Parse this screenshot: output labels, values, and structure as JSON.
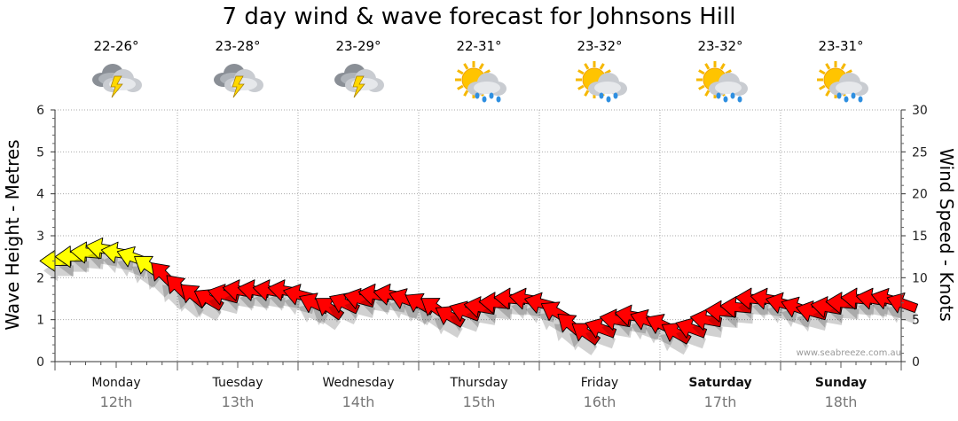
{
  "chart_data": {
    "type": "scatter",
    "title": "7 day wind & wave forecast for Johnsons Hill",
    "ylabel_left": "Wave Height - Metres",
    "ylabel_right": "Wind Speed - Knots",
    "ylim_left": [
      0,
      6
    ],
    "ylim_right": [
      0,
      30
    ],
    "yticks_left": [
      "0",
      "1",
      "2",
      "3",
      "4",
      "5",
      "6"
    ],
    "yticks_right": [
      "0",
      "5",
      "10",
      "15",
      "20",
      "25",
      "30"
    ],
    "grid": true,
    "days": [
      {
        "name": "Monday",
        "date": "12th",
        "temp": "22-26°",
        "icon": "thunderstorm-icon",
        "bold": false
      },
      {
        "name": "Tuesday",
        "date": "13th",
        "temp": "23-28°",
        "icon": "thunderstorm-icon",
        "bold": false
      },
      {
        "name": "Wednesday",
        "date": "14th",
        "temp": "23-29°",
        "icon": "thunderstorm-icon",
        "bold": false
      },
      {
        "name": "Thursday",
        "date": "15th",
        "temp": "22-31°",
        "icon": "sun-cloud-rain-icon",
        "bold": false
      },
      {
        "name": "Friday",
        "date": "16th",
        "temp": "23-32°",
        "icon": "sun-cloud-drizzle-icon",
        "bold": false
      },
      {
        "name": "Saturday",
        "date": "17th",
        "temp": "23-32°",
        "icon": "sun-cloud-rain-icon",
        "bold": true
      },
      {
        "name": "Sunday",
        "date": "18th",
        "temp": "23-31°",
        "icon": "sun-cloud-rain-icon",
        "bold": true
      }
    ],
    "series": [
      {
        "mark": "wind-arrow",
        "day_offset": [
          0,
          0.125,
          0.25,
          0.375,
          0.5,
          0.625,
          0.75,
          0.875,
          1,
          1.125,
          1.25,
          1.375,
          1.5,
          1.625,
          1.75,
          1.875,
          2,
          2.125,
          2.25,
          2.375,
          2.5,
          2.625,
          2.75,
          2.875,
          3,
          3.125,
          3.25,
          3.375,
          3.5,
          3.625,
          3.75,
          3.875,
          4,
          4.125,
          4.25,
          4.375,
          4.5,
          4.625,
          4.75,
          4.875,
          5,
          5.125,
          5.25,
          5.375,
          5.5,
          5.625,
          5.75,
          5.875,
          6,
          6.125,
          6.25,
          6.375,
          6.5,
          6.625,
          6.75,
          6.875,
          7
        ],
        "wind_knots": [
          12,
          12.5,
          13,
          13.5,
          13,
          12.5,
          11.5,
          10.5,
          9,
          8,
          7.5,
          8,
          8.5,
          8.5,
          8.5,
          8.5,
          8,
          7,
          6.5,
          7,
          7.5,
          8,
          8,
          7.5,
          7,
          6.5,
          5.5,
          6,
          6.5,
          7,
          7.5,
          7.5,
          7,
          6,
          4.5,
          3.5,
          4,
          5,
          5.5,
          5,
          4.5,
          3.5,
          4,
          5,
          6,
          6.5,
          7.5,
          7.5,
          7,
          6.5,
          6,
          6.5,
          7,
          7.5,
          7.5,
          7.5,
          7
        ],
        "wind_color": [
          "#ffff00",
          "#ffff00",
          "#ffff00",
          "#ffff00",
          "#ffff00",
          "#ffff00",
          "#ffff00",
          "#ff0000",
          "#ff0000",
          "#ff0000",
          "#ff0000",
          "#ff0000",
          "#ff0000",
          "#ff0000",
          "#ff0000",
          "#ff0000",
          "#ff0000",
          "#ff0000",
          "#ff0000",
          "#ff0000",
          "#ff0000",
          "#ff0000",
          "#ff0000",
          "#ff0000",
          "#ff0000",
          "#ff0000",
          "#ff0000",
          "#ff0000",
          "#ff0000",
          "#ff0000",
          "#ff0000",
          "#ff0000",
          "#ff0000",
          "#ff0000",
          "#ff0000",
          "#ff0000",
          "#ff0000",
          "#ff0000",
          "#ff0000",
          "#ff0000",
          "#ff0000",
          "#ff0000",
          "#ff0000",
          "#ff0000",
          "#ff0000",
          "#ff0000",
          "#ff0000",
          "#ff0000",
          "#ff0000",
          "#ff0000",
          "#ff0000",
          "#ff0000",
          "#ff0000",
          "#ff0000",
          "#ff0000",
          "#ff0000",
          "#ff0000"
        ],
        "wind_dir_deg": [
          90,
          90,
          95,
          100,
          100,
          110,
          125,
          135,
          135,
          130,
          120,
          105,
          100,
          100,
          100,
          100,
          105,
          115,
          125,
          115,
          105,
          100,
          100,
          110,
          120,
          125,
          120,
          110,
          100,
          95,
          95,
          100,
          105,
          120,
          130,
          125,
          110,
          100,
          100,
          110,
          115,
          120,
          110,
          100,
          95,
          95,
          95,
          100,
          105,
          110,
          105,
          100,
          95,
          95,
          100,
          105,
          110
        ]
      }
    ],
    "watermark": "www.seabreeze.com.au",
    "colors": {
      "light_wind": "#ffff00",
      "moderate_wind": "#ff0000",
      "grid": "#aaaaaa"
    }
  }
}
